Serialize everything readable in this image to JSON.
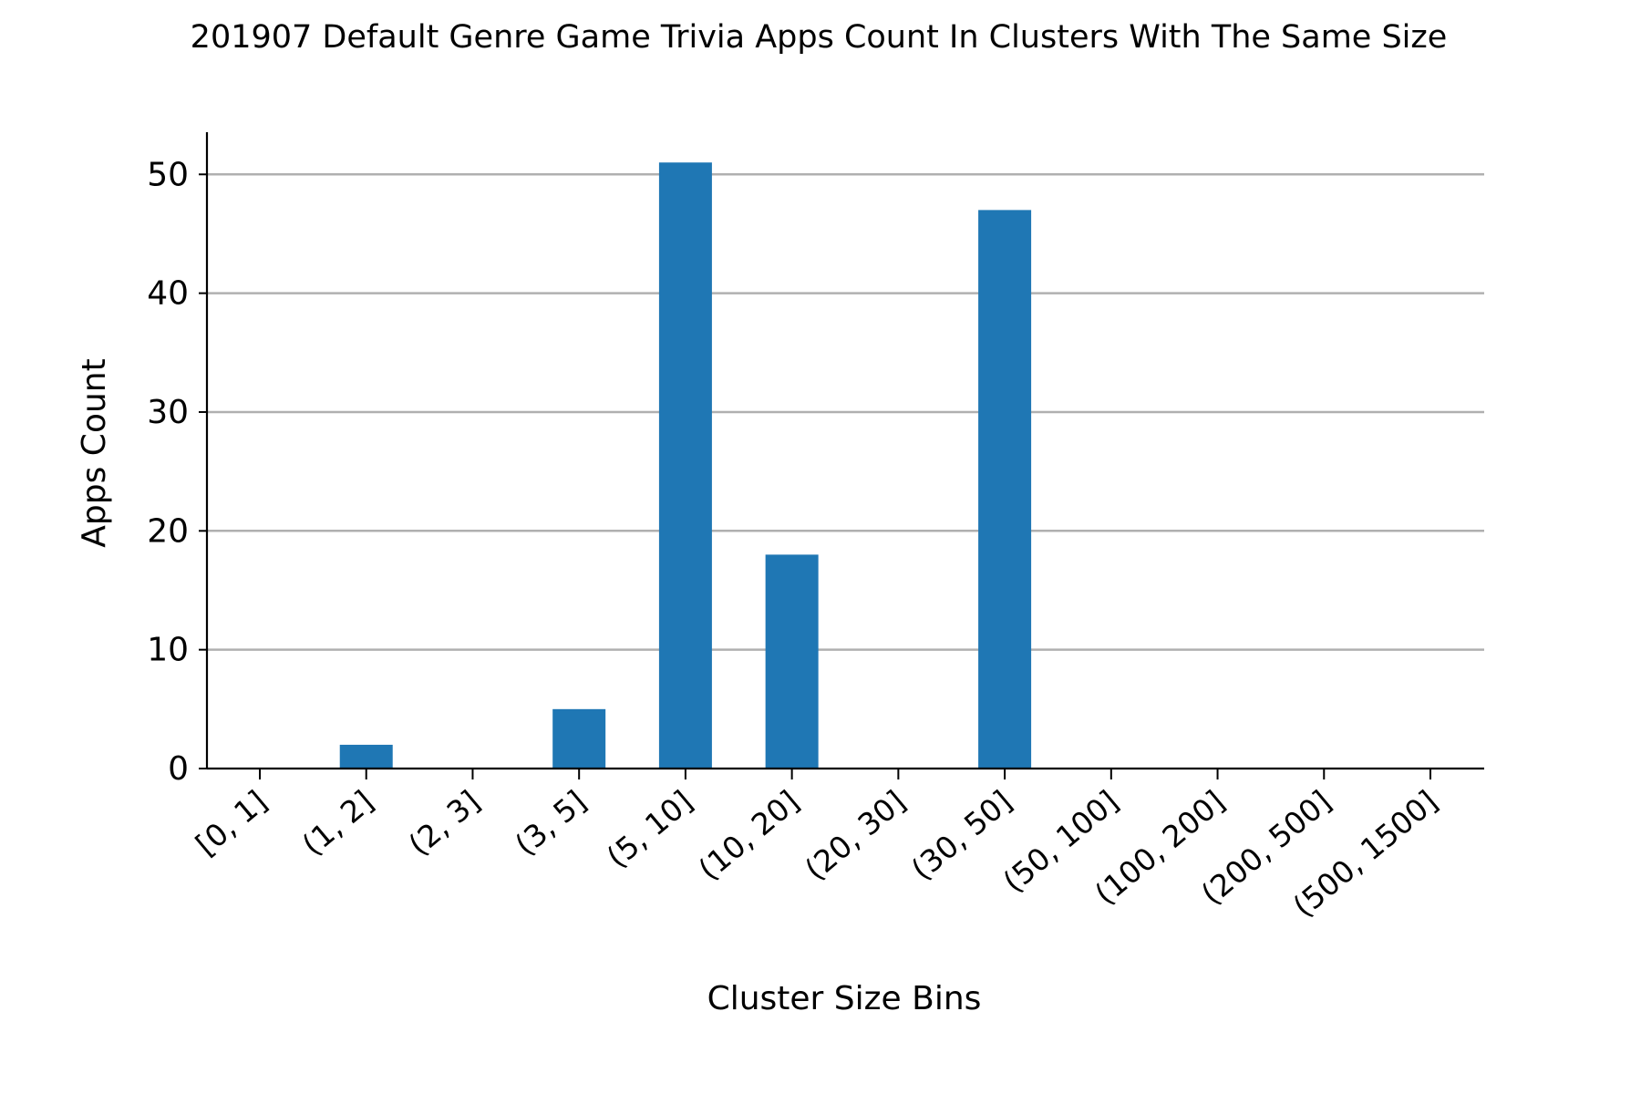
{
  "chart_data": {
    "type": "bar",
    "title": "201907 Default Genre Game Trivia Apps Count In Clusters With The Same Size",
    "xlabel": "Cluster Size Bins",
    "ylabel": "Apps Count",
    "categories": [
      "[0, 1]",
      "(1, 2]",
      "(2, 3]",
      "(3, 5]",
      "(5, 10]",
      "(10, 20]",
      "(20, 30]",
      "(30, 50]",
      "(50, 100]",
      "(100, 200]",
      "(200, 500]",
      "(500, 1500]"
    ],
    "values": [
      0,
      2,
      0,
      5,
      51,
      18,
      0,
      47,
      0,
      0,
      0,
      0
    ],
    "ylim": [
      0,
      53.55
    ],
    "yticks": [
      0,
      10,
      20,
      30,
      40,
      50
    ],
    "grid": "horizontal",
    "legend": "none",
    "colors": {
      "bar": "#1f77b4",
      "grid": "#b0b0b0",
      "axis": "#000000"
    }
  }
}
